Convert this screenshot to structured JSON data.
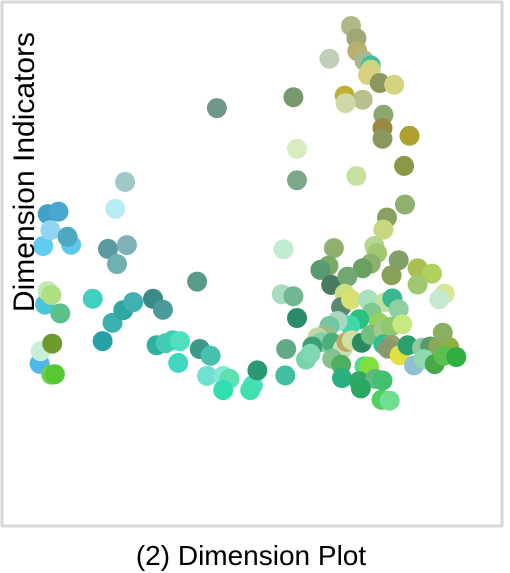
{
  "chart_data": {
    "type": "scatter",
    "title": "",
    "xlabel": "(2) Dimension Plot",
    "ylabel": "Dimension Indicators",
    "xlim": [
      0,
      100
    ],
    "ylim": [
      0,
      100
    ],
    "grid": false,
    "legend": "none",
    "points": [
      {
        "x": 2.8,
        "y": 19.4,
        "color": "#4fb8e8"
      },
      {
        "x": 3.0,
        "y": 22.4,
        "color": "#c8f0d8"
      },
      {
        "x": 5.4,
        "y": 16.8,
        "color": "#6ad24a"
      },
      {
        "x": 6.2,
        "y": 16.9,
        "color": "#55c832"
      },
      {
        "x": 5.6,
        "y": 24.2,
        "color": "#6d9a2c"
      },
      {
        "x": 4.0,
        "y": 33.5,
        "color": "#4cc4d8"
      },
      {
        "x": 4.6,
        "y": 36.7,
        "color": "#c0e8b0"
      },
      {
        "x": 5.4,
        "y": 35.8,
        "color": "#aee080"
      },
      {
        "x": 7.4,
        "y": 31.4,
        "color": "#5cc08a"
      },
      {
        "x": 3.6,
        "y": 47.5,
        "color": "#60ccf0"
      },
      {
        "x": 4.6,
        "y": 55.1,
        "color": "#3fa0c8"
      },
      {
        "x": 5.2,
        "y": 51.3,
        "color": "#90d4f0"
      },
      {
        "x": 7.0,
        "y": 55.7,
        "color": "#4aa8d0"
      },
      {
        "x": 9.8,
        "y": 47.8,
        "color": "#5cc8f0"
      },
      {
        "x": 9.0,
        "y": 49.7,
        "color": "#4fa8c0"
      },
      {
        "x": 14.6,
        "y": 34.9,
        "color": "#40d0c0"
      },
      {
        "x": 19.0,
        "y": 29.2,
        "color": "#3ab0b0"
      },
      {
        "x": 16.8,
        "y": 24.8,
        "color": "#28a0a8"
      },
      {
        "x": 21.4,
        "y": 32.2,
        "color": "#30a8a0"
      },
      {
        "x": 23.6,
        "y": 34.1,
        "color": "#40b0b0"
      },
      {
        "x": 28.0,
        "y": 34.9,
        "color": "#3a8a88"
      },
      {
        "x": 30.2,
        "y": 32.3,
        "color": "#4a9a98"
      },
      {
        "x": 28.8,
        "y": 23.8,
        "color": "#30b0a0"
      },
      {
        "x": 30.8,
        "y": 24.3,
        "color": "#48c8b8"
      },
      {
        "x": 32.4,
        "y": 25.0,
        "color": "#3cd0b0"
      },
      {
        "x": 34.0,
        "y": 24.8,
        "color": "#50e0c0"
      },
      {
        "x": 33.6,
        "y": 19.6,
        "color": "#40d8c0"
      },
      {
        "x": 38.4,
        "y": 22.9,
        "color": "#3a9a88"
      },
      {
        "x": 40.8,
        "y": 21.3,
        "color": "#48c0b0"
      },
      {
        "x": 40.0,
        "y": 16.5,
        "color": "#70e0d0"
      },
      {
        "x": 43.6,
        "y": 16.5,
        "color": "#80e8d8"
      },
      {
        "x": 45.0,
        "y": 15.8,
        "color": "#60e0b0"
      },
      {
        "x": 43.6,
        "y": 13.1,
        "color": "#30e0b0"
      },
      {
        "x": 50.2,
        "y": 14.3,
        "color": "#50e0c0"
      },
      {
        "x": 51.2,
        "y": 17.8,
        "color": "#2a9870"
      },
      {
        "x": 49.6,
        "y": 13.1,
        "color": "#40e0b0"
      },
      {
        "x": 37.8,
        "y": 39.0,
        "color": "#5a9a88"
      },
      {
        "x": 18.0,
        "y": 46.8,
        "color": "#5a9aa0"
      },
      {
        "x": 20.0,
        "y": 43.2,
        "color": "#70b0b0"
      },
      {
        "x": 22.2,
        "y": 47.7,
        "color": "#80b0b8"
      },
      {
        "x": 19.6,
        "y": 56.4,
        "color": "#b8ecf4"
      },
      {
        "x": 21.8,
        "y": 62.8,
        "color": "#a0c8c8"
      },
      {
        "x": 42.2,
        "y": 80.4,
        "color": "#709888"
      },
      {
        "x": 56.6,
        "y": 36.0,
        "color": "#a8dcc0"
      },
      {
        "x": 59.2,
        "y": 35.5,
        "color": "#70b890"
      },
      {
        "x": 60.0,
        "y": 30.3,
        "color": "#2a8c68"
      },
      {
        "x": 57.6,
        "y": 22.9,
        "color": "#60aa88"
      },
      {
        "x": 57.4,
        "y": 16.6,
        "color": "#40c0a0"
      },
      {
        "x": 62.0,
        "y": 20.4,
        "color": "#78d4a8"
      },
      {
        "x": 57.0,
        "y": 46.7,
        "color": "#c0ecd0"
      },
      {
        "x": 60.0,
        "y": 63.2,
        "color": "#7aa888"
      },
      {
        "x": 60.0,
        "y": 70.7,
        "color": "#d8ecc0"
      },
      {
        "x": 59.2,
        "y": 83.0,
        "color": "#7a9870"
      },
      {
        "x": 67.2,
        "y": 92.2,
        "color": "#c0d0b8"
      },
      {
        "x": 72.0,
        "y": 100.0,
        "color": "#b0b888"
      },
      {
        "x": 73.2,
        "y": 97.1,
        "color": "#a0a878"
      },
      {
        "x": 73.4,
        "y": 94.0,
        "color": "#b8b070"
      },
      {
        "x": 75.0,
        "y": 91.7,
        "color": "#a8b890"
      },
      {
        "x": 76.4,
        "y": 90.6,
        "color": "#40c0a0"
      },
      {
        "x": 76.4,
        "y": 89.6,
        "color": "#c8d880"
      },
      {
        "x": 75.8,
        "y": 88.3,
        "color": "#d8d080"
      },
      {
        "x": 78.4,
        "y": 86.4,
        "color": "#8a9860"
      },
      {
        "x": 81.6,
        "y": 86.0,
        "color": "#d4d480"
      },
      {
        "x": 70.6,
        "y": 83.4,
        "color": "#c0b030"
      },
      {
        "x": 74.6,
        "y": 82.4,
        "color": "#b8c090"
      },
      {
        "x": 70.8,
        "y": 81.6,
        "color": "#d0d8a8"
      },
      {
        "x": 79.2,
        "y": 78.8,
        "color": "#8aa870"
      },
      {
        "x": 79.0,
        "y": 75.6,
        "color": "#9a8840"
      },
      {
        "x": 79.0,
        "y": 73.1,
        "color": "#8a9860"
      },
      {
        "x": 85.0,
        "y": 73.8,
        "color": "#b0a030"
      },
      {
        "x": 83.8,
        "y": 66.6,
        "color": "#8a9848"
      },
      {
        "x": 73.2,
        "y": 64.2,
        "color": "#c8e0a0"
      },
      {
        "x": 84.0,
        "y": 57.4,
        "color": "#90b070"
      },
      {
        "x": 80.0,
        "y": 54.3,
        "color": "#8aa060"
      },
      {
        "x": 79.2,
        "y": 51.4,
        "color": "#c8d880"
      },
      {
        "x": 77.2,
        "y": 47.5,
        "color": "#b0d890"
      },
      {
        "x": 77.8,
        "y": 45.8,
        "color": "#a0c870"
      },
      {
        "x": 76.4,
        "y": 43.3,
        "color": "#90b070"
      },
      {
        "x": 74.6,
        "y": 42.2,
        "color": "#6aa060"
      },
      {
        "x": 82.6,
        "y": 44.1,
        "color": "#80a068"
      },
      {
        "x": 81.0,
        "y": 40.5,
        "color": "#88a058"
      },
      {
        "x": 86.8,
        "y": 42.2,
        "color": "#a8c050"
      },
      {
        "x": 90.0,
        "y": 40.9,
        "color": "#b0d060"
      },
      {
        "x": 86.8,
        "y": 38.3,
        "color": "#a0c870"
      },
      {
        "x": 68.2,
        "y": 47.0,
        "color": "#90b070"
      },
      {
        "x": 67.0,
        "y": 42.8,
        "color": "#7aa868"
      },
      {
        "x": 65.2,
        "y": 41.8,
        "color": "#5a9a70"
      },
      {
        "x": 67.6,
        "y": 38.2,
        "color": "#4a7a60"
      },
      {
        "x": 71.2,
        "y": 40.2,
        "color": "#70a870"
      },
      {
        "x": 70.6,
        "y": 36.1,
        "color": "#c8e080"
      },
      {
        "x": 69.8,
        "y": 32.9,
        "color": "#5a8870"
      },
      {
        "x": 72.0,
        "y": 34.7,
        "color": "#d8e070"
      },
      {
        "x": 75.8,
        "y": 34.7,
        "color": "#a8e0c0"
      },
      {
        "x": 79.6,
        "y": 34.1,
        "color": "#c0e0a0"
      },
      {
        "x": 81.2,
        "y": 35.0,
        "color": "#38b890"
      },
      {
        "x": 82.6,
        "y": 32.4,
        "color": "#90d0a0"
      },
      {
        "x": 76.6,
        "y": 31.6,
        "color": "#80c890"
      },
      {
        "x": 78.2,
        "y": 29.2,
        "color": "#98d060"
      },
      {
        "x": 73.8,
        "y": 30.0,
        "color": "#2ac080"
      },
      {
        "x": 71.8,
        "y": 28.6,
        "color": "#40d8a8"
      },
      {
        "x": 69.0,
        "y": 29.6,
        "color": "#a8d8c0"
      },
      {
        "x": 67.2,
        "y": 28.4,
        "color": "#70c8a0"
      },
      {
        "x": 66.4,
        "y": 26.6,
        "color": "#90c090"
      },
      {
        "x": 64.6,
        "y": 25.7,
        "color": "#c0d8a0"
      },
      {
        "x": 65.4,
        "y": 24.5,
        "color": "#80d0a8"
      },
      {
        "x": 63.4,
        "y": 23.5,
        "color": "#3aa078"
      },
      {
        "x": 63.0,
        "y": 21.8,
        "color": "#80d8b0"
      },
      {
        "x": 67.8,
        "y": 24.4,
        "color": "#48b078"
      },
      {
        "x": 70.2,
        "y": 23.0,
        "color": "#c8e0b8"
      },
      {
        "x": 71.0,
        "y": 24.6,
        "color": "#c0a860"
      },
      {
        "x": 72.2,
        "y": 25.0,
        "color": "#d0e0a0"
      },
      {
        "x": 74.4,
        "y": 24.4,
        "color": "#2a8a60"
      },
      {
        "x": 76.4,
        "y": 26.3,
        "color": "#70c080"
      },
      {
        "x": 79.2,
        "y": 27.4,
        "color": "#a0c888"
      },
      {
        "x": 80.8,
        "y": 28.2,
        "color": "#90c870"
      },
      {
        "x": 83.4,
        "y": 28.8,
        "color": "#c8e880"
      },
      {
        "x": 79.2,
        "y": 24.0,
        "color": "#30c090"
      },
      {
        "x": 81.0,
        "y": 23.9,
        "color": "#98a070"
      },
      {
        "x": 80.2,
        "y": 23.0,
        "color": "#8a9870"
      },
      {
        "x": 82.8,
        "y": 21.4,
        "color": "#e0e040"
      },
      {
        "x": 84.6,
        "y": 23.8,
        "color": "#2aa070"
      },
      {
        "x": 87.8,
        "y": 23.2,
        "color": "#90c8a0"
      },
      {
        "x": 89.6,
        "y": 23.5,
        "color": "#5a9a68"
      },
      {
        "x": 91.4,
        "y": 23.6,
        "color": "#8aa858"
      },
      {
        "x": 93.8,
        "y": 23.4,
        "color": "#90b040"
      },
      {
        "x": 86.0,
        "y": 19.0,
        "color": "#90c0d0"
      },
      {
        "x": 88.2,
        "y": 20.5,
        "color": "#90d8b0"
      },
      {
        "x": 90.6,
        "y": 19.3,
        "color": "#48a848"
      },
      {
        "x": 92.6,
        "y": 21.3,
        "color": "#5ac050"
      },
      {
        "x": 95.4,
        "y": 21.0,
        "color": "#30b040"
      },
      {
        "x": 92.4,
        "y": 26.8,
        "color": "#88b060"
      },
      {
        "x": 92.8,
        "y": 36.1,
        "color": "#d8e890"
      },
      {
        "x": 91.6,
        "y": 34.8,
        "color": "#c8e8d0"
      },
      {
        "x": 67.8,
        "y": 20.6,
        "color": "#88c090"
      },
      {
        "x": 69.8,
        "y": 19.2,
        "color": "#50b060"
      },
      {
        "x": 70.0,
        "y": 16.0,
        "color": "#28b080"
      },
      {
        "x": 75.0,
        "y": 18.8,
        "color": "#50d890"
      },
      {
        "x": 76.0,
        "y": 18.7,
        "color": "#80e040"
      },
      {
        "x": 73.8,
        "y": 15.2,
        "color": "#30a868"
      },
      {
        "x": 77.4,
        "y": 15.8,
        "color": "#60b880"
      },
      {
        "x": 74.2,
        "y": 13.5,
        "color": "#28a860"
      },
      {
        "x": 78.8,
        "y": 10.8,
        "color": "#50d060"
      },
      {
        "x": 80.6,
        "y": 10.6,
        "color": "#70e090"
      },
      {
        "x": 79.0,
        "y": 15.4,
        "color": "#40c070"
      }
    ]
  }
}
